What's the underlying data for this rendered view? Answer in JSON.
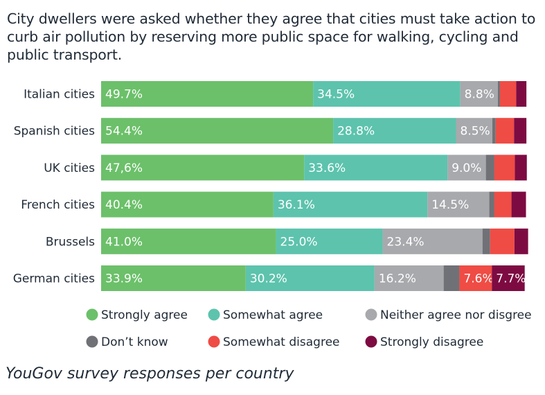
{
  "title": "City dwellers were asked whether they agree that cities must take action to curb air pollution by reserving more public space for walking, cycling and public transport.",
  "footer": "YouGov survey responses per country",
  "chart_data": {
    "type": "bar",
    "stacked": true,
    "orientation": "horizontal",
    "categories": [
      "Italian cities",
      "Spanish cities",
      "UK cities",
      "French cities",
      "Brussels",
      "German cities"
    ],
    "series": [
      {
        "name": "Strongly agree",
        "color": "#6cc06a",
        "values": [
          49.7,
          54.4,
          47.6,
          40.4,
          41.0,
          33.9
        ],
        "labels": [
          "49.7%",
          "54.4%",
          "47,6%",
          "40.4%",
          "41.0%",
          "33.9%"
        ]
      },
      {
        "name": "Somewhat agree",
        "color": "#5dc3ad",
        "values": [
          34.5,
          28.8,
          33.6,
          36.1,
          25.0,
          30.2
        ],
        "labels": [
          "34.5%",
          "28.8%",
          "33.6%",
          "36.1%",
          "25.0%",
          "30.2%"
        ]
      },
      {
        "name": "Neither agree nor disgree",
        "color": "#a8a9ad",
        "values": [
          8.8,
          8.5,
          9.0,
          14.5,
          23.4,
          16.2
        ],
        "labels": [
          "8.8%",
          "8.5%",
          "9.0%",
          "14.5%",
          "23.4%",
          "16.2%"
        ]
      },
      {
        "name": "Don’t know",
        "color": "#707176",
        "values": [
          0.5,
          0.8,
          2.0,
          1.2,
          1.8,
          3.7
        ],
        "labels": [
          "",
          "",
          "",
          "",
          "",
          ""
        ]
      },
      {
        "name": "Somewhat disagree",
        "color": "#ef4c45",
        "values": [
          3.8,
          4.3,
          4.8,
          4.0,
          5.7,
          7.6
        ],
        "labels": [
          "",
          "",
          "",
          "",
          "",
          "7.6%"
        ]
      },
      {
        "name": "Strongly disagree",
        "color": "#7d0b42",
        "values": [
          2.4,
          2.9,
          2.8,
          3.4,
          3.2,
          7.7
        ],
        "labels": [
          "",
          "",
          "",
          "",
          "",
          "7.7%"
        ]
      }
    ],
    "xlim": [
      0,
      100
    ],
    "grid": false,
    "legend_position": "bottom"
  }
}
